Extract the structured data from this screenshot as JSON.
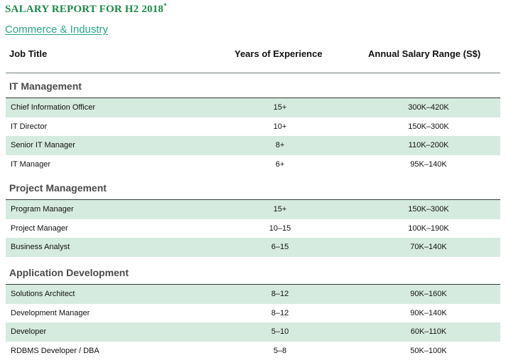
{
  "report": {
    "title": "SALARY REPORT FOR H2 2018",
    "title_mark": "*",
    "subtitle": "Commerce & Industry"
  },
  "columns": {
    "job": "Job Title",
    "years": "Years of Experience",
    "salary": "Annual Salary Range (S$)"
  },
  "colors": {
    "title": "#1f8a4a",
    "subtitle": "#2aa58a",
    "shaded_row": "#d6ebe0"
  },
  "sections": [
    {
      "title": "IT Management",
      "rows": [
        {
          "job": "Chief Information Officer",
          "years": "15+",
          "salary": "300K–420K"
        },
        {
          "job": "IT Director",
          "years": "10+",
          "salary": "150K–300K"
        },
        {
          "job": "Senior IT Manager",
          "years": "8+",
          "salary": "110K–200K"
        },
        {
          "job": "IT Manager",
          "years": "6+",
          "salary": "95K–140K"
        }
      ]
    },
    {
      "title": "Project Management",
      "rows": [
        {
          "job": "Program Manager",
          "years": "15+",
          "salary": "150K–300K"
        },
        {
          "job": "Project Manager",
          "years": "10–15",
          "salary": "100K–190K"
        },
        {
          "job": "Business Analyst",
          "years": "6–15",
          "salary": "70K–140K"
        }
      ]
    },
    {
      "title": "Application Development",
      "rows": [
        {
          "job": "Solutions Architect",
          "years": "8–12",
          "salary": "90K–160K"
        },
        {
          "job": "Development Manager",
          "years": "8–12",
          "salary": "90K–140K"
        },
        {
          "job": "Developer",
          "years": "5–10",
          "salary": "60K–110K"
        },
        {
          "job": "RDBMS Developer / DBA",
          "years": "5–8",
          "salary": "50K–100K"
        }
      ]
    }
  ]
}
